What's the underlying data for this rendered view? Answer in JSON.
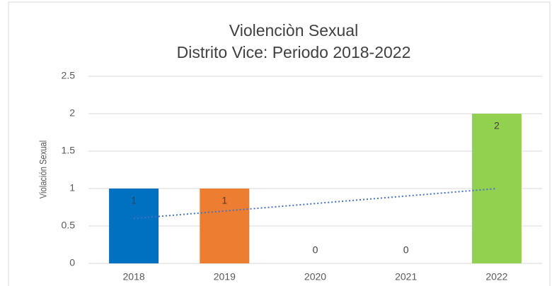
{
  "chart_data": {
    "type": "bar",
    "title": "Violenciòn Sexual",
    "subtitle": "Distrito Vice: Periodo 2018-2022",
    "y_label": "Violación Sexual",
    "categories": [
      "2018",
      "2019",
      "2020",
      "2021",
      "2022"
    ],
    "values": [
      1,
      1,
      0,
      0,
      2
    ],
    "colors": [
      "#0070c0",
      "#ed7d31",
      "#a5a5a5",
      "#ffc000",
      "#92d050"
    ],
    "ylim": [
      0,
      2.5
    ],
    "yticks": [
      0,
      0.5,
      1,
      1.5,
      2,
      2.5
    ],
    "grid": true,
    "trendline": "linear",
    "trendline_color": "#4472c4"
  }
}
